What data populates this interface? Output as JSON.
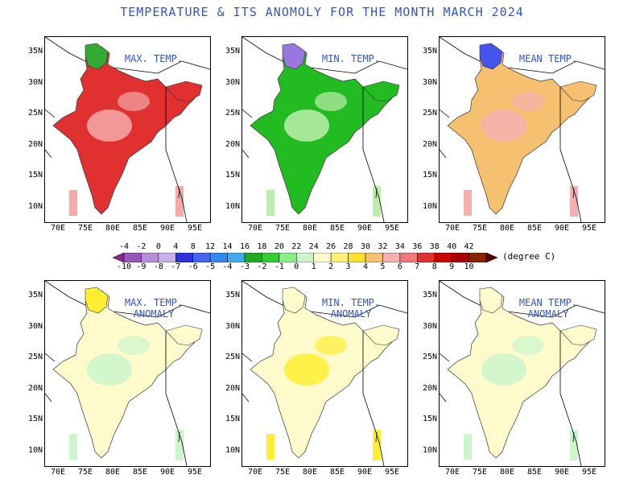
{
  "title": "TEMPERATURE & ITS  ANOMOLY FOR THE MONTH MARCH 2024",
  "panels": [
    {
      "label_lines": [
        "MAX. TEMP."
      ],
      "fill": "#e03030",
      "blob": "#f4aaaa",
      "north": "#33aa33"
    },
    {
      "label_lines": [
        "MIN. TEMP."
      ],
      "fill": "#22bb22",
      "blob": "#bbeeaa",
      "north": "#9977dd"
    },
    {
      "label_lines": [
        "MEAN TEMP."
      ],
      "fill": "#f5c070",
      "blob": "#f4b0b0",
      "north": "#4455ee"
    },
    {
      "label_lines": [
        "MAX. TEMP.",
        "ANOMALY"
      ],
      "fill": "#fffbcc",
      "blob": "#ccf5cc",
      "north": "#ffee33"
    },
    {
      "label_lines": [
        "MIN. TEMP.",
        "ANOMALY"
      ],
      "fill": "#fffbcc",
      "blob": "#ffee33",
      "north": "#fffbcc"
    },
    {
      "label_lines": [
        "MEAN TEMP.",
        "ANOMALY"
      ],
      "fill": "#fffbcc",
      "blob": "#ccf5cc",
      "north": "#fffbcc"
    }
  ],
  "y_ticks": [
    "35N",
    "30N",
    "25N",
    "20N",
    "15N",
    "10N"
  ],
  "x_ticks": [
    "70E",
    "75E",
    "80E",
    "85E",
    "90E",
    "95E"
  ],
  "colorbar": {
    "top_labels": [
      "-4",
      "-2",
      "0",
      "4",
      "8",
      "12",
      "14",
      "16",
      "18",
      "20",
      "22",
      "24",
      "26",
      "28",
      "30",
      "32",
      "34",
      "36",
      "38",
      "40",
      "42"
    ],
    "bottom_labels": [
      "-10",
      "-9",
      "-8",
      "-7",
      "-6",
      "-5",
      "-4",
      "-3",
      "-2",
      "-1",
      "0",
      "1",
      "2",
      "3",
      "4",
      "5",
      "6",
      "7",
      "8",
      "9",
      "10"
    ],
    "colors": [
      "#8a2a8a",
      "#9955bb",
      "#b48fd8",
      "#c9b0e8",
      "#3333dd",
      "#4466ee",
      "#3388ee",
      "#44aaee",
      "#22aa22",
      "#33cc33",
      "#88ee88",
      "#ccf5cc",
      "#fffbcc",
      "#fff07a",
      "#ffe033",
      "#f5c070",
      "#f4b0b0",
      "#f07878",
      "#e03030",
      "#cc0000",
      "#aa0000",
      "#882200",
      "#550000"
    ],
    "unit": "(degree C)"
  }
}
